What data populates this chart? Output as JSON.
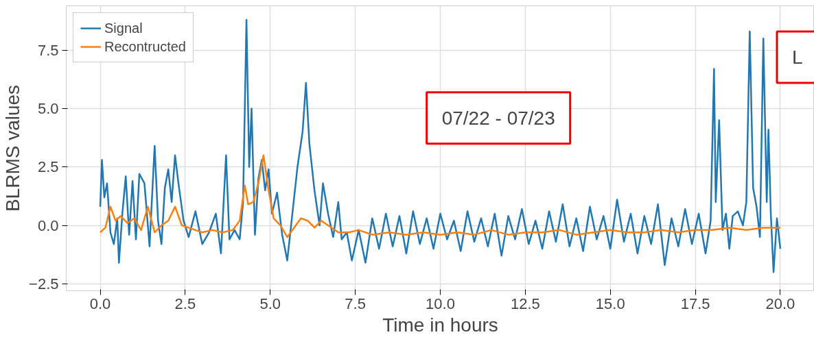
{
  "chart_data": {
    "type": "line",
    "xlabel": "Time in hours",
    "ylabel": "BLRMS values",
    "xlim": [
      -1,
      21
    ],
    "ylim": [
      -2.8,
      9.4
    ],
    "xticks": [
      {
        "value": 0,
        "label": "0.0"
      },
      2.5,
      {
        "value": 5,
        "label": "5.0"
      },
      7.5,
      {
        "value": 10,
        "label": "10.0"
      },
      12.5,
      {
        "value": 15,
        "label": "15.0"
      },
      17.5,
      {
        "value": 20,
        "label": "20.0"
      }
    ],
    "yticks": [
      -2.5,
      {
        "value": 0,
        "label": "0.0"
      },
      2.5,
      {
        "value": 5,
        "label": "5.0"
      },
      7.5
    ],
    "grid": true,
    "legend": "top left",
    "line_style": "solid",
    "annotations": [
      "07/22 - 07/23",
      "L"
    ],
    "series": [
      {
        "name": "Signal",
        "color": "#1f77b4",
        "x": [
          0,
          0.05,
          0.12,
          0.2,
          0.3,
          0.4,
          0.5,
          0.55,
          0.65,
          0.75,
          0.85,
          0.95,
          1.05,
          1.15,
          1.3,
          1.45,
          1.6,
          1.7,
          1.8,
          1.9,
          2.0,
          2.1,
          2.2,
          2.3,
          2.45,
          2.6,
          2.8,
          3.0,
          3.2,
          3.4,
          3.55,
          3.7,
          3.8,
          3.95,
          4.1,
          4.2,
          4.3,
          4.38,
          4.45,
          4.55,
          4.65,
          4.75,
          4.85,
          4.95,
          5.05,
          5.2,
          5.35,
          5.5,
          5.65,
          5.8,
          5.95,
          6.05,
          6.15,
          6.3,
          6.45,
          6.55,
          6.7,
          6.85,
          7.0,
          7.1,
          7.25,
          7.4,
          7.6,
          7.8,
          8.0,
          8.2,
          8.4,
          8.6,
          8.8,
          9.0,
          9.2,
          9.4,
          9.6,
          9.8,
          10.0,
          10.2,
          10.4,
          10.6,
          10.8,
          11.0,
          11.2,
          11.4,
          11.6,
          11.8,
          12.0,
          12.2,
          12.4,
          12.6,
          12.8,
          13.0,
          13.2,
          13.4,
          13.6,
          13.8,
          14.0,
          14.2,
          14.4,
          14.6,
          14.8,
          15.0,
          15.2,
          15.4,
          15.6,
          15.8,
          16.0,
          16.2,
          16.4,
          16.6,
          16.8,
          17.0,
          17.2,
          17.4,
          17.6,
          17.8,
          17.95,
          18.05,
          18.1,
          18.2,
          18.3,
          18.4,
          18.5,
          18.6,
          18.75,
          18.9,
          19.0,
          19.1,
          19.2,
          19.3,
          19.4,
          19.5,
          19.6,
          19.65,
          19.72,
          19.8,
          19.9,
          20.0
        ],
        "values": [
          0.8,
          2.8,
          1.2,
          1.8,
          -0.3,
          -0.8,
          0.3,
          -1.6,
          0.5,
          2.1,
          -0.4,
          1.9,
          -0.6,
          2.2,
          1.8,
          -0.9,
          3.4,
          0.2,
          -0.8,
          1.6,
          2.4,
          1.0,
          3.0,
          1.8,
          0.2,
          -0.5,
          0.6,
          -0.8,
          -0.3,
          0.5,
          -1.2,
          3.0,
          -0.6,
          -0.2,
          -0.6,
          1.0,
          8.8,
          2.5,
          5.0,
          -0.4,
          2.0,
          2.8,
          1.5,
          2.4,
          0.5,
          1.4,
          -0.4,
          -1.5,
          0.5,
          2.5,
          4.0,
          6.1,
          3.5,
          1.5,
          0.0,
          1.8,
          0.5,
          -0.5,
          1.0,
          -0.6,
          -0.3,
          -1.5,
          -0.2,
          -1.6,
          0.3,
          -1.0,
          0.5,
          -0.9,
          0.4,
          -1.2,
          0.6,
          -0.8,
          0.3,
          -1.0,
          0.5,
          -0.6,
          0.2,
          -1.1,
          0.6,
          -0.7,
          0.3,
          -0.9,
          0.5,
          -1.3,
          0.4,
          -0.6,
          0.7,
          -0.8,
          0.2,
          -1.0,
          0.6,
          -0.7,
          0.9,
          -0.9,
          0.3,
          -1.1,
          0.8,
          -0.6,
          0.4,
          -1.0,
          1.1,
          -0.7,
          0.5,
          -1.2,
          0.4,
          -0.8,
          0.9,
          -1.7,
          0.3,
          -0.9,
          0.7,
          -0.8,
          0.5,
          -1.2,
          0.2,
          6.7,
          1.0,
          4.5,
          -0.2,
          0.5,
          -1.0,
          0.4,
          0.6,
          0.0,
          1.0,
          8.3,
          1.6,
          0.8,
          -0.5,
          8.0,
          1.0,
          4.1,
          0.5,
          -2.0,
          0.3,
          -1.0
        ]
      },
      {
        "name": "Recontructed",
        "color": "#ff7f0e",
        "x": [
          0,
          0.15,
          0.3,
          0.45,
          0.6,
          0.8,
          1.0,
          1.2,
          1.4,
          1.6,
          1.8,
          2.0,
          2.2,
          2.4,
          2.6,
          2.8,
          3.0,
          3.3,
          3.6,
          3.9,
          4.1,
          4.25,
          4.35,
          4.5,
          4.65,
          4.8,
          4.95,
          5.1,
          5.3,
          5.5,
          5.7,
          5.9,
          6.1,
          6.3,
          6.5,
          6.7,
          7.0,
          7.3,
          7.6,
          8.0,
          8.5,
          9.0,
          9.5,
          10.0,
          10.5,
          11.0,
          11.5,
          12.0,
          12.5,
          13.0,
          13.5,
          14.0,
          14.5,
          15.0,
          15.5,
          16.0,
          16.5,
          17.0,
          17.5,
          18.0,
          18.5,
          19.0,
          19.5,
          20.0
        ],
        "values": [
          -0.3,
          -0.1,
          0.8,
          0.2,
          0.4,
          0.1,
          0.3,
          -0.2,
          0.8,
          -0.3,
          0.0,
          0.2,
          0.8,
          0.0,
          -0.1,
          -0.2,
          -0.3,
          -0.2,
          -0.3,
          -0.2,
          0.2,
          1.7,
          0.9,
          1.0,
          1.8,
          3.0,
          1.5,
          0.3,
          0.0,
          -0.5,
          -0.1,
          0.3,
          0.2,
          -0.1,
          0.2,
          0.0,
          -0.3,
          -0.3,
          -0.2,
          -0.4,
          -0.3,
          -0.4,
          -0.3,
          -0.4,
          -0.3,
          -0.4,
          -0.2,
          -0.4,
          -0.3,
          -0.3,
          -0.2,
          -0.4,
          -0.3,
          -0.2,
          -0.3,
          -0.3,
          -0.2,
          -0.3,
          -0.2,
          -0.2,
          -0.1,
          -0.2,
          -0.1,
          -0.1
        ]
      }
    ]
  }
}
